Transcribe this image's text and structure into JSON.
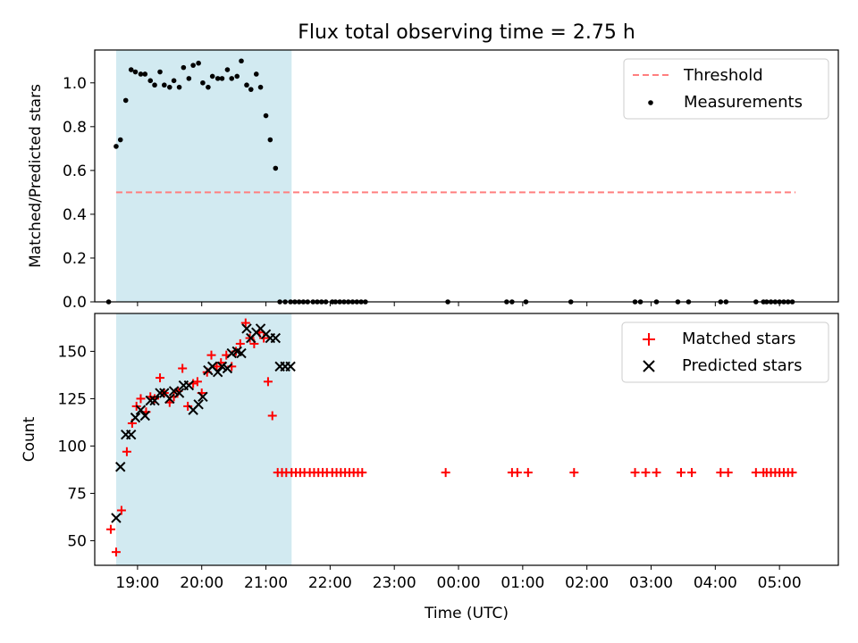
{
  "figure": {
    "title": "Flux total observing time = 2.75 h"
  },
  "colors": {
    "shade": "#add8e6",
    "threshold": "#ff7f7f",
    "measurement": "#000000",
    "matched": "#ff0000",
    "predicted": "#000000"
  },
  "chart_data": [
    {
      "type": "scatter",
      "ylabel": "Matched/Predicted stars",
      "xlim": [
        "18:20",
        "05:55"
      ],
      "ylim": [
        0,
        1.15
      ],
      "yticks": [
        "0.0",
        "0.2",
        "0.4",
        "0.6",
        "0.8",
        "1.0"
      ],
      "shaded_region": [
        "18:40",
        "21:24"
      ],
      "legend": {
        "placement": "upper right",
        "entries": [
          "Threshold",
          "Measurements"
        ]
      },
      "threshold": {
        "name": "Threshold",
        "value": 0.5,
        "x_range": [
          "18:40",
          "05:15"
        ],
        "style": "dashed"
      },
      "series": [
        {
          "name": "Measurements",
          "x": [
            "18:33",
            "18:40",
            "18:44",
            "18:49",
            "18:54",
            "18:58",
            "19:03",
            "19:07",
            "19:12",
            "19:16",
            "19:21",
            "19:25",
            "19:30",
            "19:34",
            "19:39",
            "19:43",
            "19:48",
            "19:52",
            "19:57",
            "20:01",
            "20:06",
            "20:10",
            "20:15",
            "20:19",
            "20:24",
            "20:28",
            "20:33",
            "20:37",
            "20:42",
            "20:46",
            "20:51",
            "20:55",
            "21:00",
            "21:04",
            "21:09",
            "21:13",
            "21:18",
            "21:23",
            "21:27",
            "21:31",
            "21:35",
            "21:39",
            "21:44",
            "21:48",
            "21:52",
            "21:56",
            "22:02",
            "22:05",
            "22:09",
            "22:13",
            "22:17",
            "22:21",
            "22:25",
            "22:29",
            "22:33",
            "23:50",
            "00:45",
            "00:50",
            "01:03",
            "01:45",
            "02:45",
            "02:50",
            "03:05",
            "03:25",
            "03:35",
            "04:05",
            "04:10",
            "04:38",
            "04:45",
            "04:48",
            "04:52",
            "04:56",
            "05:00",
            "05:04",
            "05:08",
            "05:12"
          ],
          "y": [
            0,
            0.71,
            0.74,
            0.92,
            1.06,
            1.05,
            1.04,
            1.04,
            1.01,
            0.99,
            1.05,
            0.99,
            0.98,
            1.01,
            0.98,
            1.07,
            1.02,
            1.08,
            1.09,
            1.0,
            0.98,
            1.03,
            1.02,
            1.02,
            1.06,
            1.02,
            1.03,
            1.1,
            0.99,
            0.97,
            1.04,
            0.98,
            0.85,
            0.74,
            0.61,
            0,
            0,
            0,
            0,
            0,
            0,
            0,
            0,
            0,
            0,
            0,
            0,
            0,
            0,
            0,
            0,
            0,
            0,
            0,
            0,
            0,
            0,
            0,
            0,
            0,
            0,
            0,
            0,
            0,
            0,
            0,
            0,
            0,
            0,
            0,
            0,
            0,
            0,
            0,
            0,
            0
          ]
        }
      ]
    },
    {
      "type": "scatter",
      "ylabel": "Count",
      "xlabel": "Time (UTC)",
      "xlim": [
        "18:20",
        "05:55"
      ],
      "ylim": [
        37,
        170
      ],
      "yticks": [
        "50",
        "75",
        "100",
        "125",
        "150"
      ],
      "xticks": [
        "19:00",
        "20:00",
        "21:00",
        "22:00",
        "23:00",
        "00:00",
        "01:00",
        "02:00",
        "03:00",
        "04:00",
        "05:00"
      ],
      "shaded_region": [
        "18:40",
        "21:24"
      ],
      "legend": {
        "placement": "upper right",
        "entries": [
          "Matched stars",
          "Predicted stars"
        ]
      },
      "series": [
        {
          "name": "Matched stars",
          "marker": "+",
          "x": [
            "18:35",
            "18:40",
            "18:45",
            "18:50",
            "18:55",
            "18:59",
            "19:03",
            "19:08",
            "19:12",
            "19:16",
            "19:21",
            "19:25",
            "19:30",
            "19:34",
            "19:38",
            "19:42",
            "19:47",
            "19:52",
            "19:56",
            "20:00",
            "20:05",
            "20:09",
            "20:14",
            "20:18",
            "20:23",
            "20:28",
            "20:32",
            "20:36",
            "20:41",
            "20:45",
            "20:49",
            "20:54",
            "20:58",
            "21:02",
            "21:06",
            "21:11",
            "21:15",
            "21:19",
            "21:24",
            "21:28",
            "21:32",
            "21:36",
            "21:41",
            "21:45",
            "21:49",
            "21:53",
            "21:57",
            "22:02",
            "22:06",
            "22:10",
            "22:14",
            "22:18",
            "22:22",
            "22:26",
            "22:30",
            "23:48",
            "00:50",
            "00:55",
            "01:05",
            "01:48",
            "02:45",
            "02:55",
            "03:05",
            "03:28",
            "03:38",
            "04:05",
            "04:12",
            "04:38",
            "04:45",
            "04:48",
            "04:52",
            "04:56",
            "05:00",
            "05:04",
            "05:08",
            "05:12"
          ],
          "y": [
            56,
            44,
            66,
            97,
            112,
            121,
            125,
            118,
            126,
            125,
            136,
            128,
            123,
            126,
            129,
            141,
            121,
            133,
            134,
            128,
            139,
            148,
            142,
            144,
            148,
            142,
            150,
            154,
            165,
            157,
            154,
            160,
            157,
            134,
            116,
            86,
            86,
            86,
            86,
            86,
            86,
            86,
            86,
            86,
            86,
            86,
            86,
            86,
            86,
            86,
            86,
            86,
            86,
            86,
            86,
            86,
            86,
            86,
            86,
            86,
            86,
            86,
            86,
            86,
            86,
            86,
            86,
            86,
            86,
            86,
            86,
            86,
            86,
            86,
            86,
            86
          ]
        },
        {
          "name": "Predicted stars",
          "marker": "x",
          "x": [
            "18:40",
            "18:44",
            "18:49",
            "18:54",
            "18:58",
            "19:03",
            "19:07",
            "19:12",
            "19:16",
            "19:21",
            "19:25",
            "19:30",
            "19:34",
            "19:39",
            "19:43",
            "19:48",
            "19:52",
            "19:57",
            "20:01",
            "20:06",
            "20:10",
            "20:15",
            "20:19",
            "20:24",
            "20:28",
            "20:33",
            "20:37",
            "20:42",
            "20:46",
            "20:51",
            "20:55",
            "21:00",
            "21:04",
            "21:09",
            "21:13",
            "21:18",
            "21:23"
          ],
          "y": [
            62,
            89,
            106,
            106,
            115,
            119,
            116,
            124,
            124,
            128,
            128,
            125,
            129,
            128,
            132,
            132,
            119,
            122,
            126,
            140,
            142,
            139,
            142,
            141,
            149,
            150,
            149,
            162,
            157,
            160,
            162,
            159,
            157,
            157,
            142,
            142,
            142
          ]
        }
      ]
    }
  ]
}
